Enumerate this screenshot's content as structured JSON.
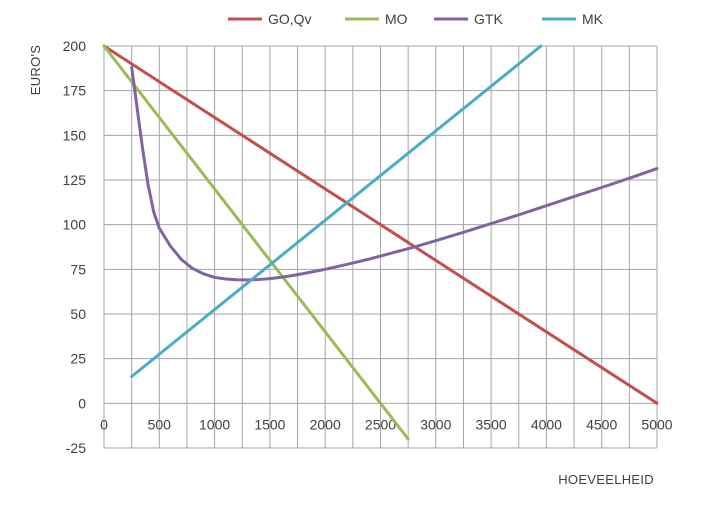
{
  "chart_data": {
    "type": "line",
    "title": "",
    "xlabel": "HOEVEELHEID",
    "ylabel": "EURO'S",
    "xlim": [
      0,
      5000
    ],
    "ylim": [
      -25,
      200
    ],
    "x_ticks": [
      0,
      250,
      500,
      750,
      1000,
      1250,
      1500,
      1750,
      2000,
      2250,
      2500,
      2750,
      3000,
      3250,
      3500,
      3750,
      4000,
      4250,
      4500,
      4750,
      5000
    ],
    "x_tick_labels": [
      "0",
      "500",
      "1000",
      "1500",
      "2000",
      "2500",
      "3000",
      "3500",
      "4000",
      "4500",
      "5000"
    ],
    "y_ticks": [
      200,
      175,
      150,
      125,
      100,
      75,
      50,
      25,
      0,
      -25
    ],
    "grid": true,
    "legend_position": "top",
    "series": [
      {
        "name": "GO,Qv",
        "color": "#c0504d",
        "x": [
          0,
          5000
        ],
        "y": [
          200,
          0
        ]
      },
      {
        "name": "MO",
        "color": "#9bbb59",
        "x": [
          0,
          2750
        ],
        "y": [
          200,
          -20
        ]
      },
      {
        "name": "GTK",
        "color": "#8064a2",
        "x": [
          250,
          300,
          350,
          400,
          450,
          500,
          600,
          700,
          800,
          900,
          1000,
          1100,
          1200,
          1300,
          1400,
          1500,
          1600,
          1700,
          1800,
          1900,
          2000,
          2200,
          2400,
          2600,
          2800,
          3000,
          3250,
          3500,
          3750,
          4000,
          4250,
          4500,
          4750,
          5000
        ],
        "y": [
          188,
          165,
          142,
          122,
          107,
          98,
          88,
          80.5,
          75.5,
          72.5,
          70.5,
          69.6,
          69.2,
          69.1,
          69.3,
          69.8,
          70.6,
          71.5,
          72.6,
          73.8,
          75,
          77.8,
          80.8,
          84.1,
          87.4,
          91,
          95.7,
          100.6,
          105.5,
          110.6,
          115.7,
          120.8,
          126,
          131.4
        ]
      },
      {
        "name": "MK",
        "color": "#4bacc6",
        "x": [
          250,
          3950
        ],
        "y": [
          15,
          200
        ]
      }
    ]
  }
}
